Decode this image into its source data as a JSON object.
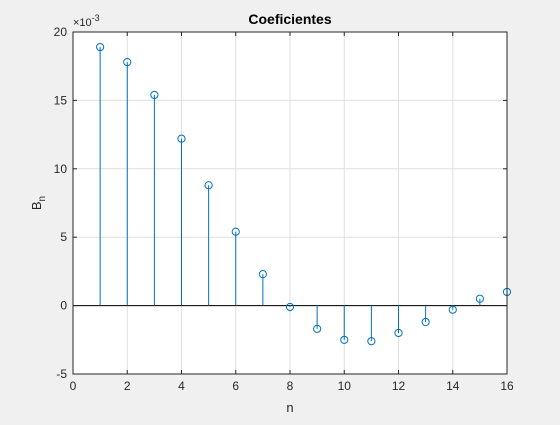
{
  "chart_data": {
    "type": "stem",
    "title": "Coeficientes",
    "xlabel": "n",
    "ylabel_main": "B",
    "ylabel_sub": "n",
    "y_exponent_prefix": "×10",
    "y_exponent": "-3",
    "xlim": [
      0,
      16
    ],
    "ylim": [
      -5,
      20
    ],
    "xticks": [
      0,
      2,
      4,
      6,
      8,
      10,
      12,
      14,
      16
    ],
    "yticks": [
      -5,
      0,
      5,
      10,
      15,
      20
    ],
    "grid": true,
    "series": [
      {
        "x": [
          1,
          2,
          3,
          4,
          5,
          6,
          7,
          8,
          9,
          10,
          11,
          12,
          13,
          14,
          15,
          16
        ],
        "y": [
          18.9,
          17.8,
          15.4,
          12.2,
          8.8,
          5.4,
          2.3,
          -0.1,
          -1.7,
          -2.5,
          -2.6,
          -2.0,
          -1.2,
          -0.3,
          0.5,
          1.0
        ]
      }
    ]
  },
  "colors": {
    "figure_background": "#f0f0f0",
    "axes_background": "#ffffff",
    "series": "#0072bd",
    "grid": "#dfdfdf",
    "axes": "#262626"
  }
}
